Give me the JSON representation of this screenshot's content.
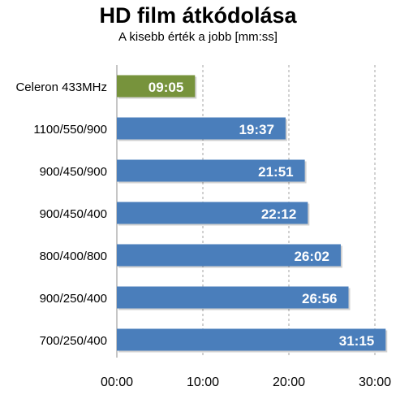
{
  "chart_data": {
    "type": "bar",
    "orientation": "horizontal",
    "title": "HD film átkódolása",
    "subtitle": "A kisebb érték a jobb [mm:ss]",
    "categories": [
      "Celeron 433MHz",
      "1100/550/900",
      "900/450/900",
      "900/450/400",
      "800/400/800",
      "900/250/400",
      "700/250/400"
    ],
    "values": [
      "09:05",
      "19:37",
      "21:51",
      "22:12",
      "26:02",
      "26:56",
      "31:15"
    ],
    "values_seconds": [
      545,
      1177,
      1311,
      1332,
      1562,
      1616,
      1875
    ],
    "xlim": [
      "00:00",
      "30:00"
    ],
    "x_ticks": [
      "00:00",
      "10:00",
      "20:00",
      "30:00"
    ],
    "grid": true,
    "colors": {
      "highlight": "#77933c",
      "default": "#4a7ebb",
      "grid": "#a6a6a6",
      "label": "#ffffff"
    }
  }
}
